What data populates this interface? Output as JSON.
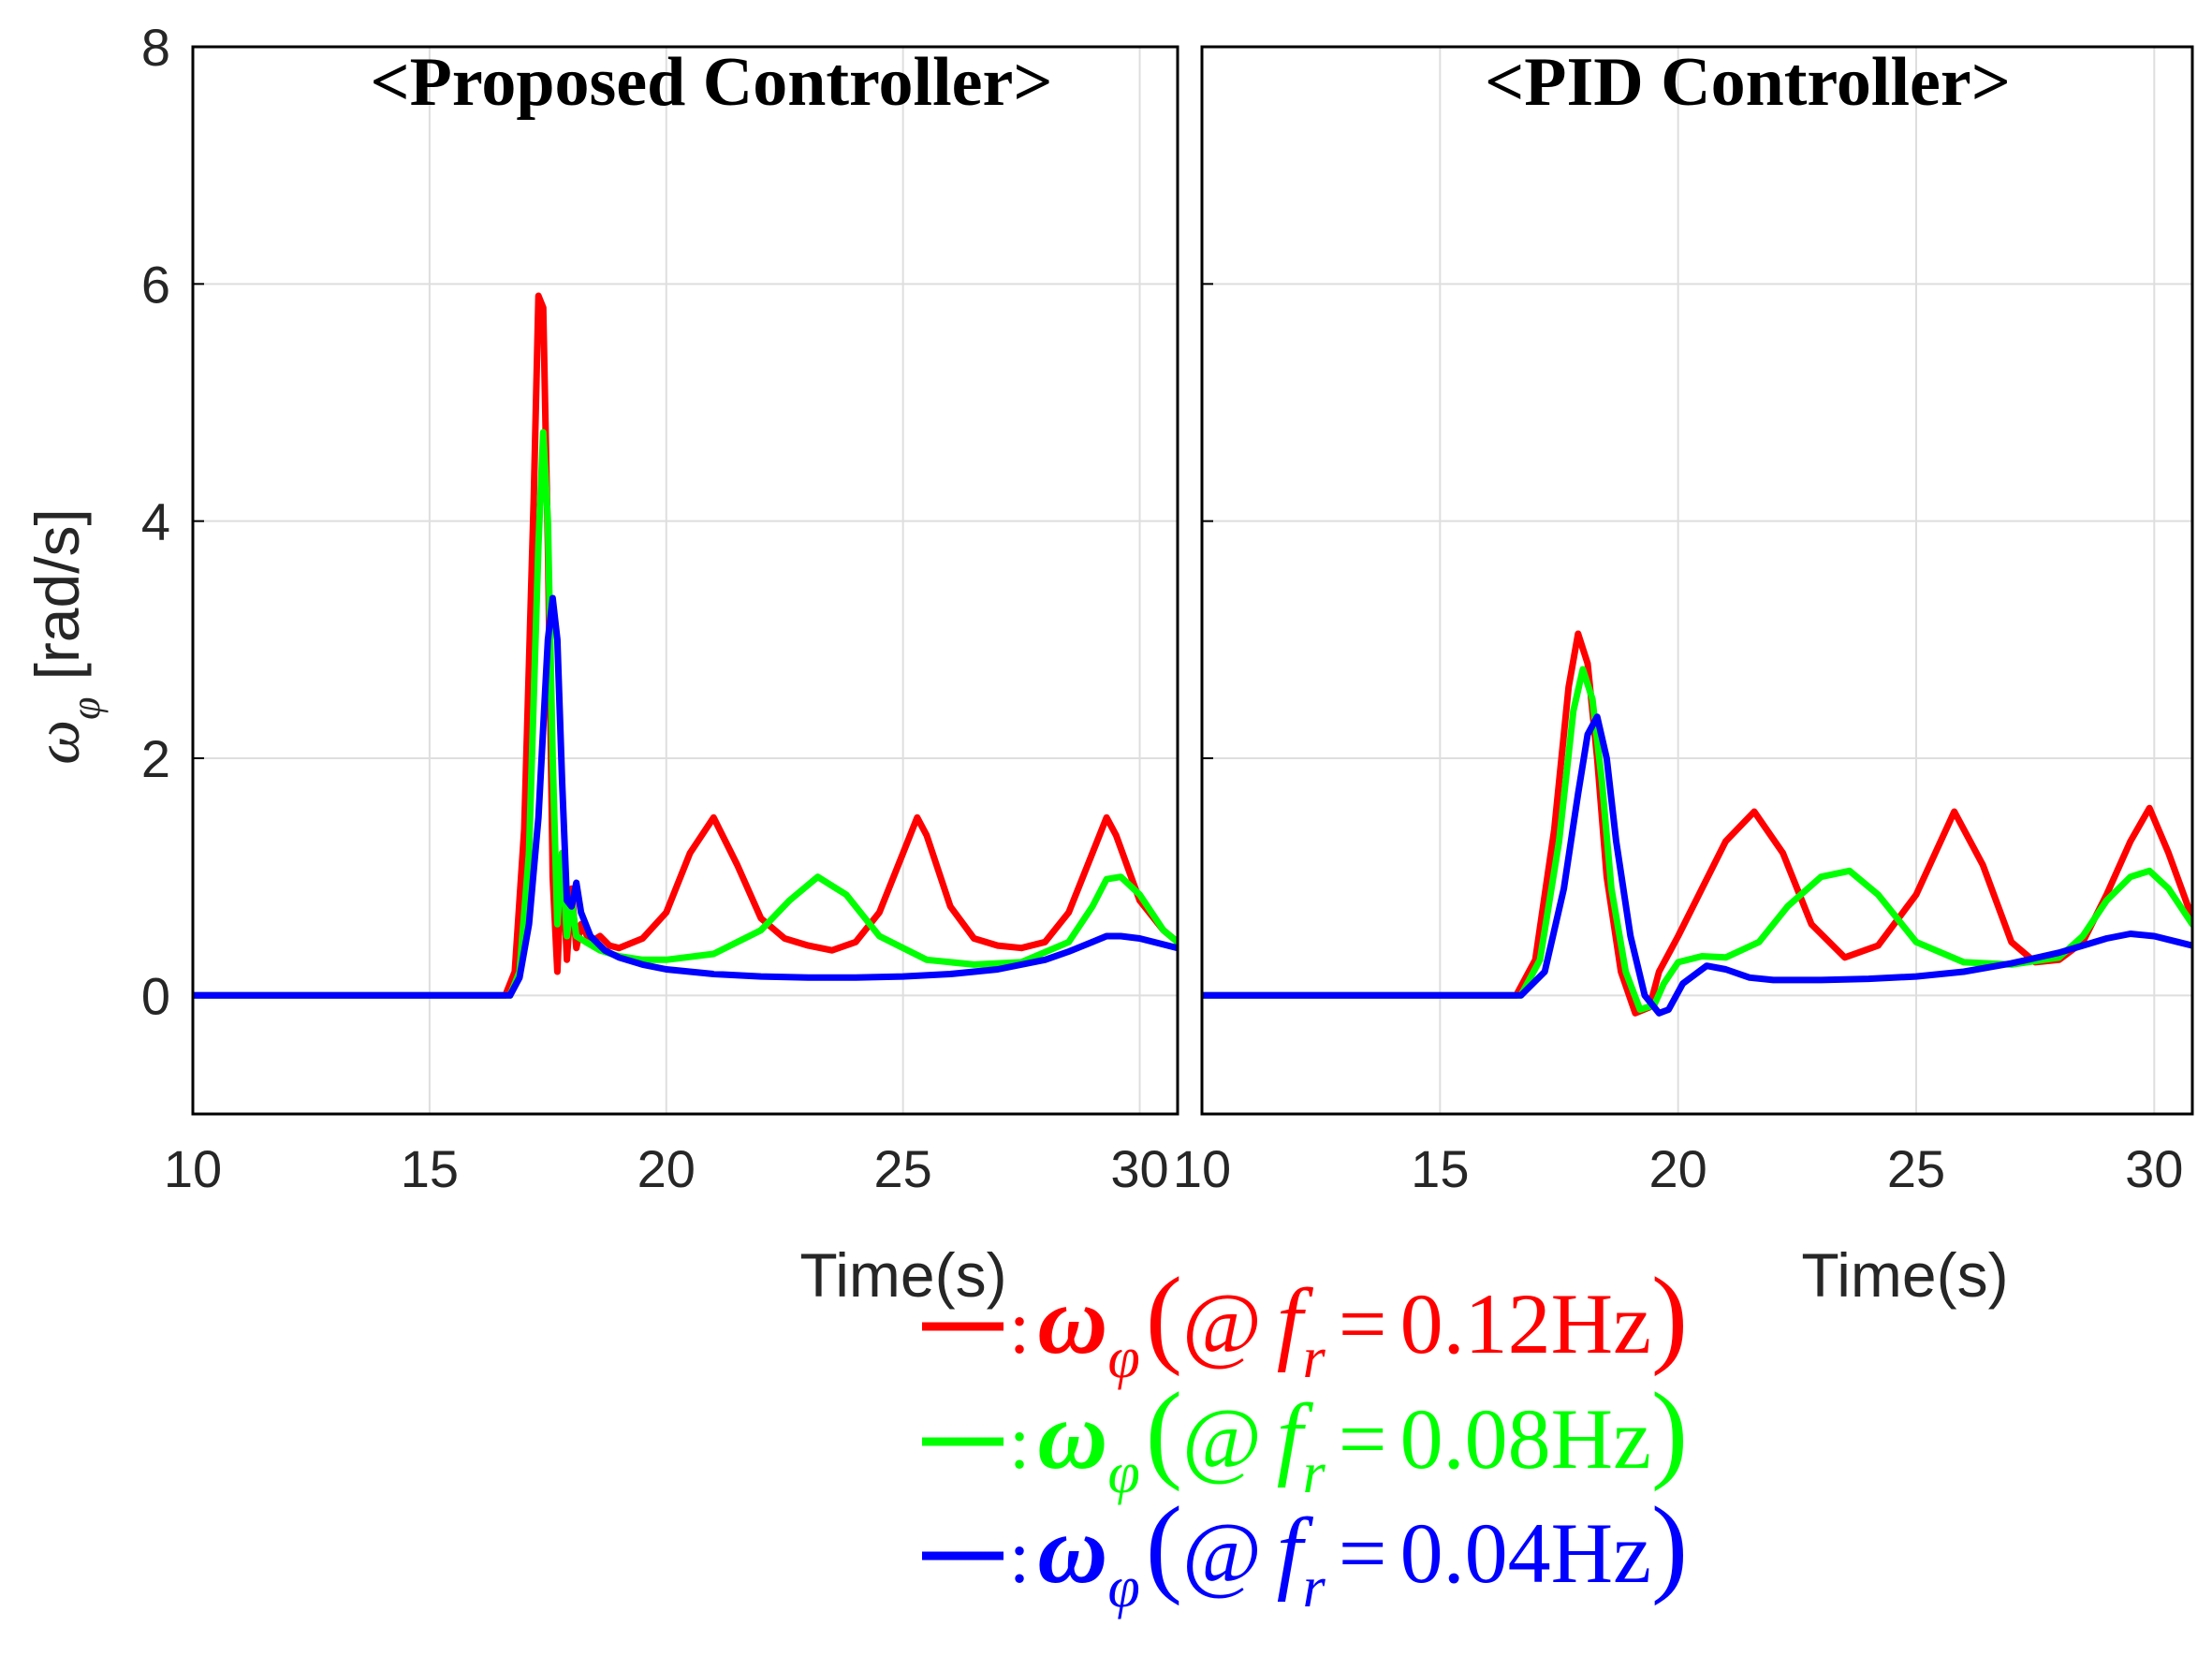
{
  "chart_data": [
    {
      "type": "line",
      "title": "<Proposed Controller>",
      "xlabel": "Time(s)",
      "ylabel": "ω_φ [rad/s]",
      "xlim": [
        10,
        30.8
      ],
      "ylim": [
        -1,
        8
      ],
      "xticks": [
        "10",
        "15",
        "20",
        "25",
        "30"
      ],
      "yticks": [
        "0",
        "2",
        "4",
        "6",
        "8"
      ],
      "grid": true,
      "series": [
        {
          "name": "0.12Hz",
          "color": "#ff0000",
          "x": [
            10,
            16.6,
            16.8,
            17.0,
            17.2,
            17.3,
            17.4,
            17.5,
            17.6,
            17.7,
            17.8,
            17.9,
            18.0,
            18.1,
            18.2,
            18.4,
            18.6,
            18.8,
            19.0,
            19.5,
            20.0,
            20.5,
            21.0,
            21.5,
            22.0,
            22.5,
            23.0,
            23.5,
            24.0,
            24.5,
            25.0,
            25.3,
            25.5,
            26.0,
            26.5,
            27.0,
            27.5,
            28.0,
            28.5,
            29.0,
            29.3,
            29.5,
            30.0,
            30.5,
            30.8
          ],
          "y": [
            0,
            0,
            0.2,
            1.4,
            4.2,
            5.9,
            5.8,
            3.8,
            1.0,
            0.2,
            1.2,
            0.3,
            0.9,
            0.4,
            0.6,
            0.45,
            0.5,
            0.42,
            0.4,
            0.48,
            0.7,
            1.2,
            1.5,
            1.1,
            0.65,
            0.48,
            0.42,
            0.38,
            0.45,
            0.7,
            1.2,
            1.5,
            1.35,
            0.75,
            0.48,
            0.42,
            0.4,
            0.45,
            0.7,
            1.2,
            1.5,
            1.35,
            0.8,
            0.55,
            0.45
          ]
        },
        {
          "name": "0.08Hz",
          "color": "#00ff00",
          "x": [
            10,
            16.7,
            16.9,
            17.1,
            17.3,
            17.4,
            17.5,
            17.6,
            17.7,
            17.8,
            17.9,
            18.0,
            18.1,
            18.3,
            18.6,
            19.0,
            19.5,
            20.0,
            21.0,
            22.0,
            22.6,
            23.2,
            23.8,
            24.5,
            25.5,
            26.5,
            27.5,
            28.5,
            29.0,
            29.3,
            29.6,
            30.0,
            30.5,
            30.8
          ],
          "y": [
            0,
            0,
            0.2,
            1.2,
            3.8,
            4.75,
            4.0,
            2.0,
            0.6,
            1.2,
            0.5,
            0.8,
            0.5,
            0.45,
            0.38,
            0.33,
            0.3,
            0.3,
            0.35,
            0.55,
            0.8,
            1.0,
            0.85,
            0.5,
            0.3,
            0.26,
            0.28,
            0.45,
            0.75,
            0.98,
            1.0,
            0.85,
            0.55,
            0.45
          ]
        },
        {
          "name": "0.04Hz",
          "color": "#0000ff",
          "x": [
            10,
            16.7,
            16.9,
            17.1,
            17.3,
            17.5,
            17.6,
            17.7,
            17.8,
            17.9,
            18.0,
            18.1,
            18.2,
            18.4,
            18.7,
            19.0,
            19.5,
            20.0,
            21.0,
            22.0,
            23.0,
            24.0,
            25.0,
            26.0,
            27.0,
            28.0,
            28.5,
            29.0,
            29.3,
            29.6,
            30.0,
            30.5,
            30.8
          ],
          "y": [
            0,
            0,
            0.15,
            0.6,
            1.5,
            3.0,
            3.35,
            3.0,
            1.8,
            0.8,
            0.75,
            0.95,
            0.7,
            0.5,
            0.38,
            0.32,
            0.26,
            0.22,
            0.18,
            0.16,
            0.15,
            0.15,
            0.16,
            0.18,
            0.22,
            0.3,
            0.37,
            0.45,
            0.5,
            0.5,
            0.48,
            0.43,
            0.4
          ]
        }
      ]
    },
    {
      "type": "line",
      "title": "<PID Controller>",
      "xlabel": "Time(s)",
      "ylabel": "",
      "xlim": [
        10,
        30.8
      ],
      "ylim": [
        -1,
        8
      ],
      "xticks": [
        "10",
        "15",
        "20",
        "25",
        "30"
      ],
      "yticks": [],
      "grid": true,
      "series": [
        {
          "name": "0.12Hz",
          "color": "#ff0000",
          "x": [
            10,
            16.6,
            17.0,
            17.4,
            17.7,
            17.9,
            18.1,
            18.3,
            18.5,
            18.8,
            19.1,
            19.4,
            19.6,
            20.0,
            20.5,
            21.0,
            21.6,
            22.2,
            22.8,
            23.5,
            24.2,
            25.0,
            25.8,
            26.4,
            27.0,
            27.5,
            28.0,
            28.5,
            29.0,
            29.5,
            29.9,
            30.3,
            30.8
          ],
          "y": [
            0,
            0,
            0.3,
            1.4,
            2.6,
            3.05,
            2.8,
            2.0,
            1.0,
            0.2,
            -0.15,
            -0.1,
            0.2,
            0.5,
            0.9,
            1.3,
            1.55,
            1.2,
            0.6,
            0.32,
            0.42,
            0.85,
            1.55,
            1.1,
            0.45,
            0.28,
            0.3,
            0.45,
            0.85,
            1.3,
            1.58,
            1.2,
            0.65
          ]
        },
        {
          "name": "0.08Hz",
          "color": "#00ff00",
          "x": [
            10,
            16.7,
            17.1,
            17.5,
            17.8,
            18.0,
            18.2,
            18.4,
            18.6,
            18.9,
            19.2,
            19.5,
            19.7,
            20.0,
            20.5,
            21.0,
            21.7,
            22.3,
            23.0,
            23.6,
            24.2,
            25.0,
            26.0,
            27.0,
            28.0,
            28.5,
            29.0,
            29.5,
            29.9,
            30.3,
            30.8
          ],
          "y": [
            0,
            0,
            0.3,
            1.3,
            2.4,
            2.75,
            2.5,
            1.8,
            0.9,
            0.2,
            -0.12,
            -0.08,
            0.1,
            0.28,
            0.33,
            0.32,
            0.45,
            0.75,
            1.0,
            1.05,
            0.85,
            0.45,
            0.28,
            0.26,
            0.32,
            0.5,
            0.8,
            1.0,
            1.05,
            0.9,
            0.6
          ]
        },
        {
          "name": "0.04Hz",
          "color": "#0000ff",
          "x": [
            10,
            16.7,
            17.2,
            17.6,
            17.9,
            18.1,
            18.3,
            18.5,
            18.7,
            19.0,
            19.3,
            19.6,
            19.8,
            20.1,
            20.6,
            21.0,
            21.5,
            22.0,
            23.0,
            24.0,
            25.0,
            26.0,
            27.0,
            28.0,
            28.5,
            29.0,
            29.5,
            30.0,
            30.5,
            30.8
          ],
          "y": [
            0,
            0,
            0.2,
            0.9,
            1.7,
            2.2,
            2.35,
            2.0,
            1.3,
            0.5,
            0.0,
            -0.15,
            -0.12,
            0.1,
            0.25,
            0.22,
            0.15,
            0.13,
            0.13,
            0.14,
            0.16,
            0.2,
            0.27,
            0.36,
            0.42,
            0.48,
            0.52,
            0.5,
            0.45,
            0.42
          ]
        }
      ]
    }
  ],
  "legend": {
    "items": [
      {
        "color": "#ff0000",
        "sep": ":",
        "symbol": "ω",
        "subscript": "φ",
        "paren_open": "(",
        "at": "@",
        "f": "f",
        "f_sub": "r",
        "eq": "=",
        "value": "0.12Hz",
        "paren_close": ")"
      },
      {
        "color": "#00ff00",
        "sep": ":",
        "symbol": "ω",
        "subscript": "φ",
        "paren_open": "(",
        "at": "@",
        "f": "f",
        "f_sub": "r",
        "eq": "=",
        "value": "0.08Hz",
        "paren_close": ")"
      },
      {
        "color": "#0000ff",
        "sep": ":",
        "symbol": "ω",
        "subscript": "φ",
        "paren_open": "(",
        "at": "@",
        "f": "f",
        "f_sub": "r",
        "eq": "=",
        "value": "0.04Hz",
        "paren_close": ")"
      }
    ]
  },
  "ylabel_parts": {
    "symbol": "ω",
    "subscript": "φ",
    "unit": "[rad/s]"
  }
}
